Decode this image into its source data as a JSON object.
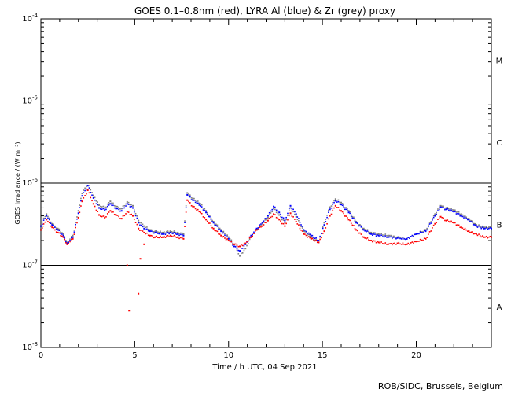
{
  "chart_data": {
    "type": "scatter",
    "title": "GOES 0.1–0.8nm (red), LYRA Al (blue) & Zr (grey) proxy",
    "xlabel": "Time / h UTC, 04 Sep 2021",
    "ylabel": "GOES Irradiance / (W m⁻²)",
    "xlim": [
      0,
      24
    ],
    "ylim": [
      1e-08,
      0.0001
    ],
    "yscale": "log",
    "x_ticks": [
      0,
      5,
      10,
      15,
      20
    ],
    "x_tick_labels": [
      "0",
      "5",
      "10",
      "15",
      "20"
    ],
    "y_ticks": [
      1e-08,
      1e-07,
      1e-06,
      1e-05,
      0.0001
    ],
    "y_tick_labels": [
      {
        "base": "10",
        "exp": "-8"
      },
      {
        "base": "10",
        "exp": "-7"
      },
      {
        "base": "10",
        "exp": "-6"
      },
      {
        "base": "10",
        "exp": "-5"
      },
      {
        "base": "10",
        "exp": "-4"
      }
    ],
    "threshold_lines": [
      1e-07,
      1e-06,
      1e-05
    ],
    "flare_classes": [
      {
        "label": "A",
        "value": 3.16e-08
      },
      {
        "label": "B",
        "value": 3.16e-07
      },
      {
        "label": "C",
        "value": 3.16e-06
      },
      {
        "label": "M",
        "value": 3.16e-05
      }
    ],
    "series": [
      {
        "name": "GOES 0.1–0.8nm",
        "color": "#ff0000",
        "x": [
          0.0,
          0.3,
          0.6,
          0.9,
          1.2,
          1.4,
          1.7,
          2.0,
          2.2,
          2.5,
          2.8,
          3.1,
          3.4,
          3.7,
          4.0,
          4.3,
          4.6,
          4.9,
          5.2,
          5.5,
          5.8,
          6.1,
          6.5,
          6.9,
          7.3,
          7.6,
          7.8,
          8.1,
          8.5,
          8.8,
          9.2,
          9.6,
          10.0,
          10.3,
          10.6,
          10.9,
          11.2,
          11.5,
          11.8,
          12.1,
          12.4,
          12.7,
          13.0,
          13.3,
          13.6,
          14.0,
          14.4,
          14.8,
          15.1,
          15.4,
          15.7,
          16.0,
          16.4,
          16.8,
          17.2,
          17.6,
          18.0,
          18.5,
          19.0,
          19.5,
          20.0,
          20.5,
          21.0,
          21.3,
          21.6,
          22.0,
          22.4,
          22.8,
          23.2,
          23.6,
          24.0
        ],
        "y": [
          2.7e-07,
          3.6e-07,
          2.9e-07,
          2.5e-07,
          2.2e-07,
          1.8e-07,
          2.1e-07,
          3.8e-07,
          6e-07,
          8.2e-07,
          5.6e-07,
          4.1e-07,
          3.8e-07,
          4.6e-07,
          4.1e-07,
          3.7e-07,
          4.5e-07,
          4e-07,
          2.8e-07,
          2.5e-07,
          2.3e-07,
          2.2e-07,
          2.2e-07,
          2.3e-07,
          2.2e-07,
          2.1e-07,
          6.2e-07,
          5.2e-07,
          4.4e-07,
          3.6e-07,
          2.8e-07,
          2.3e-07,
          2e-07,
          1.8e-07,
          1.7e-07,
          1.85e-07,
          2.2e-07,
          2.7e-07,
          3e-07,
          3.5e-07,
          4.2e-07,
          3.6e-07,
          3e-07,
          4.3e-07,
          3.4e-07,
          2.4e-07,
          2.1e-07,
          1.9e-07,
          2.6e-07,
          4e-07,
          5.3e-07,
          4.6e-07,
          3.6e-07,
          2.7e-07,
          2.2e-07,
          2e-07,
          1.9e-07,
          1.8e-07,
          1.85e-07,
          1.8e-07,
          1.95e-07,
          2.1e-07,
          3.2e-07,
          3.9e-07,
          3.5e-07,
          3.3e-07,
          2.9e-07,
          2.6e-07,
          2.4e-07,
          2.2e-07,
          2.2e-07
        ]
      },
      {
        "name": "LYRA Al proxy",
        "color": "#0000ff",
        "x": [
          0.0,
          0.3,
          0.6,
          0.9,
          1.2,
          1.4,
          1.7,
          2.0,
          2.2,
          2.5,
          2.8,
          3.1,
          3.4,
          3.7,
          4.0,
          4.3,
          4.6,
          4.9,
          5.2,
          5.5,
          5.8,
          6.1,
          6.5,
          6.9,
          7.3,
          7.6,
          7.8,
          8.1,
          8.5,
          8.8,
          9.2,
          9.6,
          10.0,
          10.3,
          10.6,
          10.9,
          11.2,
          11.5,
          11.8,
          12.1,
          12.4,
          12.7,
          13.0,
          13.3,
          13.6,
          14.0,
          14.4,
          14.8,
          15.1,
          15.4,
          15.7,
          16.0,
          16.4,
          16.8,
          17.2,
          17.6,
          18.0,
          18.5,
          19.0,
          19.5,
          20.0,
          20.5,
          21.0,
          21.3,
          21.6,
          22.0,
          22.4,
          22.8,
          23.2,
          23.6,
          24.0
        ],
        "y": [
          3e-07,
          4e-07,
          3.1e-07,
          2.7e-07,
          2.3e-07,
          1.85e-07,
          2.2e-07,
          4.3e-07,
          7e-07,
          9.3e-07,
          6.6e-07,
          5e-07,
          4.7e-07,
          5.6e-07,
          4.9e-07,
          4.6e-07,
          5.6e-07,
          5e-07,
          3.3e-07,
          2.8e-07,
          2.6e-07,
          2.5e-07,
          2.4e-07,
          2.5e-07,
          2.4e-07,
          2.3e-07,
          7.2e-07,
          6.2e-07,
          5.3e-07,
          4.4e-07,
          3.3e-07,
          2.6e-07,
          2.1e-07,
          1.7e-07,
          1.5e-07,
          1.8e-07,
          2.3e-07,
          2.8e-07,
          3.3e-07,
          4e-07,
          5.2e-07,
          4.4e-07,
          3.5e-07,
          5.3e-07,
          4.2e-07,
          2.7e-07,
          2.3e-07,
          2e-07,
          3.1e-07,
          4.8e-07,
          6.1e-07,
          5.5e-07,
          4.4e-07,
          3.3e-07,
          2.7e-07,
          2.4e-07,
          2.3e-07,
          2.2e-07,
          2.15e-07,
          2.1e-07,
          2.4e-07,
          2.6e-07,
          4e-07,
          5.1e-07,
          4.8e-07,
          4.5e-07,
          4e-07,
          3.6e-07,
          3e-07,
          2.8e-07,
          2.8e-07
        ]
      },
      {
        "name": "LYRA Zr proxy",
        "color": "#808080",
        "x": [
          0.0,
          0.3,
          0.6,
          0.9,
          1.2,
          1.4,
          1.7,
          2.0,
          2.2,
          2.5,
          2.8,
          3.1,
          3.4,
          3.7,
          4.0,
          4.3,
          4.6,
          4.9,
          5.2,
          5.5,
          5.8,
          6.1,
          6.5,
          6.9,
          7.3,
          7.6,
          7.8,
          8.1,
          8.5,
          8.8,
          9.2,
          9.6,
          10.0,
          10.3,
          10.6,
          10.9,
          11.2,
          11.5,
          11.8,
          12.1,
          12.4,
          12.7,
          13.0,
          13.3,
          13.6,
          14.0,
          14.4,
          14.8,
          15.1,
          15.4,
          15.7,
          16.0,
          16.4,
          16.8,
          17.2,
          17.6,
          18.0,
          18.5,
          19.0,
          19.5,
          20.0,
          20.5,
          21.0,
          21.3,
          21.6,
          22.0,
          22.4,
          22.8,
          23.2,
          23.6,
          24.0
        ],
        "y": [
          3.2e-07,
          4.2e-07,
          3.2e-07,
          2.8e-07,
          2.4e-07,
          1.9e-07,
          2.3e-07,
          4.6e-07,
          7.5e-07,
          1e-06,
          7.1e-07,
          5.4e-07,
          5e-07,
          6e-07,
          5.2e-07,
          4.9e-07,
          5.9e-07,
          5.3e-07,
          3.5e-07,
          3e-07,
          2.7e-07,
          2.6e-07,
          2.5e-07,
          2.6e-07,
          2.5e-07,
          2.4e-07,
          7.6e-07,
          6.5e-07,
          5.6e-07,
          4.6e-07,
          3.4e-07,
          2.7e-07,
          2.2e-07,
          1.8e-07,
          1.3e-07,
          1.6e-07,
          2.2e-07,
          2.7e-07,
          3.2e-07,
          3.8e-07,
          4.9e-07,
          4.1e-07,
          3.3e-07,
          5e-07,
          3.9e-07,
          2.6e-07,
          2.2e-07,
          1.9e-07,
          3.3e-07,
          5.1e-07,
          6.4e-07,
          5.8e-07,
          4.6e-07,
          3.4e-07,
          2.8e-07,
          2.5e-07,
          2.4e-07,
          2.3e-07,
          2.2e-07,
          2.1e-07,
          2.4e-07,
          2.7e-07,
          4.2e-07,
          5.3e-07,
          5e-07,
          4.7e-07,
          4.2e-07,
          3.7e-07,
          3.1e-07,
          2.9e-07,
          2.9e-07
        ]
      }
    ],
    "outliers": {
      "color": "#ff0000",
      "x": [
        4.6,
        4.7,
        5.2,
        5.3,
        5.5
      ],
      "y": [
        1e-07,
        2.8e-08,
        4.5e-08,
        1.2e-07,
        1.8e-07
      ]
    },
    "grid": false,
    "legend": "none"
  },
  "footer": {
    "credit": "ROB/SIDC, Brussels, Belgium"
  }
}
